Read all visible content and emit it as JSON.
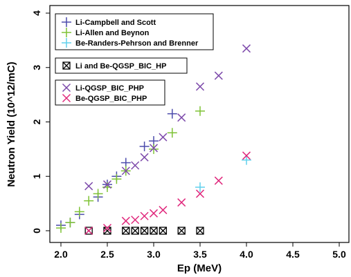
{
  "chart_data": {
    "type": "scatter",
    "title": "",
    "xlabel": "Ep (MeV)",
    "ylabel": "Neutron Yield (10^12/mC)",
    "xlim": [
      2.0,
      5.0
    ],
    "ylim": [
      0,
      4
    ],
    "x_ticks": [
      "2.0",
      "2.5",
      "3.0",
      "3.5",
      "4.0",
      "4.5",
      "5.0"
    ],
    "y_ticks": [
      "0",
      "1",
      "2",
      "3",
      "4"
    ],
    "grid": false,
    "legend_placement": "top-left",
    "legend_groups": [
      [
        "Li-Campbell and Scott",
        "Li-Allen and Beynon",
        "Be-Randers-Pehrson and Brenner"
      ],
      [
        "Li and Be-QGSP_BIC_HP"
      ],
      [
        "Li-QGSP_BIC_PHP",
        "Be-QGSP_BIC_PHP"
      ]
    ],
    "series": [
      {
        "name": "Li-Campbell and Scott",
        "marker": "plus",
        "color": "#4b4bab",
        "points": [
          [
            2.0,
            0.1
          ],
          [
            2.1,
            0.15
          ],
          [
            2.2,
            0.3
          ],
          [
            2.4,
            0.62
          ],
          [
            2.5,
            0.85
          ],
          [
            2.6,
            1.0
          ],
          [
            2.7,
            1.25
          ],
          [
            2.9,
            1.55
          ],
          [
            3.0,
            1.65
          ],
          [
            3.2,
            2.15
          ]
        ]
      },
      {
        "name": "Li-Allen and Beynon",
        "marker": "plus",
        "color": "#7ec234",
        "points": [
          [
            2.0,
            0.05
          ],
          [
            2.1,
            0.15
          ],
          [
            2.2,
            0.35
          ],
          [
            2.3,
            0.55
          ],
          [
            2.4,
            0.68
          ],
          [
            2.5,
            0.8
          ],
          [
            2.6,
            0.95
          ],
          [
            2.7,
            1.1
          ],
          [
            3.0,
            1.5
          ],
          [
            3.2,
            1.8
          ],
          [
            3.5,
            2.2
          ]
        ]
      },
      {
        "name": "Be-Randers-Pehrson and Brenner",
        "marker": "plus",
        "color": "#5fd0ec",
        "points": [
          [
            3.5,
            0.8
          ],
          [
            4.0,
            1.3
          ]
        ]
      },
      {
        "name": "Li and Be-QGSP_BIC_HP",
        "marker": "boxx",
        "color": "#000000",
        "points": [
          [
            2.3,
            0.0
          ],
          [
            2.5,
            0.0
          ],
          [
            2.7,
            0.0
          ],
          [
            2.8,
            0.0
          ],
          [
            2.9,
            0.0
          ],
          [
            3.0,
            0.0
          ],
          [
            3.1,
            0.0
          ],
          [
            3.3,
            0.0
          ],
          [
            3.5,
            0.0
          ]
        ]
      },
      {
        "name": "Li-QGSP_BIC_PHP",
        "marker": "x",
        "color": "#7d4aab",
        "points": [
          [
            2.3,
            0.82
          ],
          [
            2.5,
            0.85
          ],
          [
            2.7,
            1.1
          ],
          [
            2.8,
            1.2
          ],
          [
            2.9,
            1.35
          ],
          [
            3.0,
            1.52
          ],
          [
            3.1,
            1.72
          ],
          [
            3.3,
            2.08
          ],
          [
            3.5,
            2.65
          ],
          [
            3.7,
            2.85
          ],
          [
            4.0,
            3.35
          ]
        ]
      },
      {
        "name": "Be-QGSP_BIC_PHP",
        "marker": "x",
        "color": "#e0287c",
        "points": [
          [
            2.3,
            0.0
          ],
          [
            2.5,
            0.05
          ],
          [
            2.7,
            0.18
          ],
          [
            2.8,
            0.2
          ],
          [
            2.9,
            0.27
          ],
          [
            3.0,
            0.32
          ],
          [
            3.1,
            0.38
          ],
          [
            3.3,
            0.52
          ],
          [
            3.5,
            0.68
          ],
          [
            3.7,
            0.92
          ],
          [
            4.0,
            1.38
          ]
        ]
      }
    ]
  }
}
